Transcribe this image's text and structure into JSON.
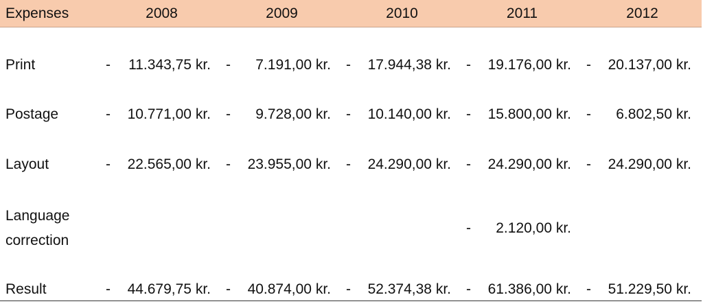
{
  "table": {
    "header": [
      "Expenses",
      "2008",
      "2009",
      "2010",
      "2011",
      "2012"
    ],
    "rows": [
      {
        "label": "Print",
        "cells": [
          {
            "sign": "-",
            "amount": "11.343,75 kr."
          },
          {
            "sign": "-",
            "amount": "7.191,00 kr."
          },
          {
            "sign": "-",
            "amount": "17.944,38 kr."
          },
          {
            "sign": "-",
            "amount": "19.176,00 kr."
          },
          {
            "sign": "-",
            "amount": "20.137,00 kr."
          }
        ]
      },
      {
        "label": "Postage",
        "cells": [
          {
            "sign": "-",
            "amount": "10.771,00 kr."
          },
          {
            "sign": "-",
            "amount": "9.728,00 kr."
          },
          {
            "sign": "-",
            "amount": "10.140,00 kr."
          },
          {
            "sign": "-",
            "amount": "15.800,00 kr."
          },
          {
            "sign": "-",
            "amount": "6.802,50 kr."
          }
        ]
      },
      {
        "label": "Layout",
        "cells": [
          {
            "sign": "-",
            "amount": "22.565,00 kr."
          },
          {
            "sign": "-",
            "amount": "23.955,00 kr."
          },
          {
            "sign": "-",
            "amount": "24.290,00 kr."
          },
          {
            "sign": "-",
            "amount": "24.290,00 kr."
          },
          {
            "sign": "-",
            "amount": "24.290,00 kr."
          }
        ]
      },
      {
        "label": "Language correction",
        "cells": [
          null,
          null,
          null,
          {
            "sign": "-",
            "amount": "2.120,00 kr."
          },
          null
        ]
      },
      {
        "label": "Result",
        "cells": [
          {
            "sign": "-",
            "amount": "44.679,75 kr."
          },
          {
            "sign": "-",
            "amount": "40.874,00 kr."
          },
          {
            "sign": "-",
            "amount": "52.374,38 kr."
          },
          {
            "sign": "-",
            "amount": "61.386,00 kr."
          },
          {
            "sign": "-",
            "amount": "51.229,50 kr."
          }
        ]
      }
    ]
  }
}
